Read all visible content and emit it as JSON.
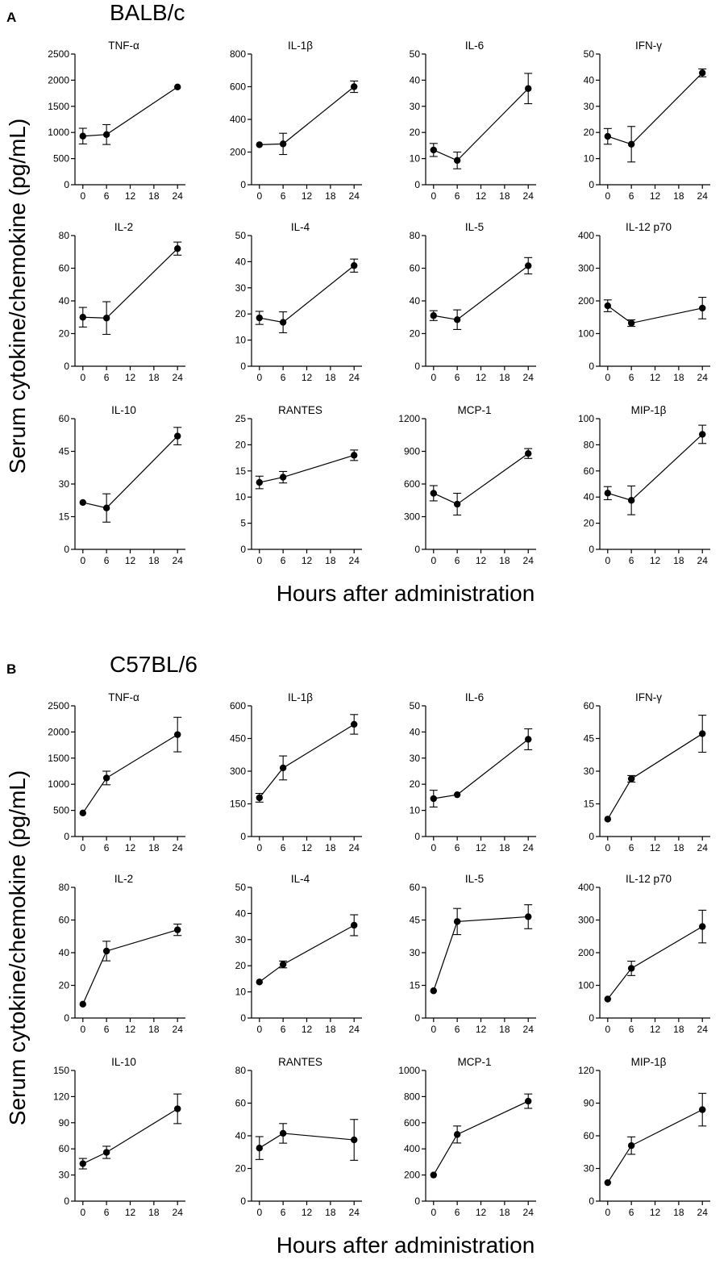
{
  "x_label": "Hours after administration",
  "y_label": "Serum cytokine/chemokine (pg/mL)",
  "chart_data": [
    {
      "panel": "A",
      "strain": "BALB/c",
      "type": "line",
      "x_ticks": [
        0,
        6,
        12,
        18,
        24
      ],
      "xlim": [
        -2,
        26
      ],
      "subplots": [
        {
          "title": "TNF-α",
          "x": [
            0,
            6,
            24
          ],
          "y": [
            930,
            960,
            1870
          ],
          "err": [
            150,
            190,
            0
          ],
          "yticks": [
            0,
            500,
            1000,
            1500,
            2000,
            2500
          ],
          "ylim": [
            0,
            2500
          ]
        },
        {
          "title": "IL-1β",
          "x": [
            0,
            6,
            24
          ],
          "y": [
            245,
            250,
            600
          ],
          "err": [
            0,
            65,
            35
          ],
          "yticks": [
            0,
            200,
            400,
            600,
            800
          ],
          "ylim": [
            0,
            800
          ]
        },
        {
          "title": "IL-6",
          "x": [
            0,
            6,
            24
          ],
          "y": [
            13.3,
            9.3,
            36.8
          ],
          "err": [
            2.5,
            3.2,
            5.8
          ],
          "yticks": [
            0,
            10,
            20,
            30,
            40,
            50
          ],
          "ylim": [
            0,
            50
          ]
        },
        {
          "title": "IFN-γ",
          "x": [
            0,
            6,
            24
          ],
          "y": [
            18.5,
            15.5,
            42.8
          ],
          "err": [
            3,
            6.8,
            1.5
          ],
          "yticks": [
            0,
            10,
            20,
            30,
            40,
            50
          ],
          "ylim": [
            0,
            50
          ]
        },
        {
          "title": "IL-2",
          "x": [
            0,
            6,
            24
          ],
          "y": [
            30,
            29.5,
            72
          ],
          "err": [
            6,
            10,
            4
          ],
          "yticks": [
            0,
            20,
            40,
            60,
            80
          ],
          "ylim": [
            0,
            80
          ]
        },
        {
          "title": "IL-4",
          "x": [
            0,
            6,
            24
          ],
          "y": [
            18.5,
            16.8,
            38.5
          ],
          "err": [
            2.5,
            4,
            2.5
          ],
          "yticks": [
            0,
            10,
            20,
            30,
            40,
            50
          ],
          "ylim": [
            0,
            50
          ]
        },
        {
          "title": "IL-5",
          "x": [
            0,
            6,
            24
          ],
          "y": [
            31,
            28.5,
            61.5
          ],
          "err": [
            3,
            6,
            5
          ],
          "yticks": [
            0,
            20,
            40,
            60,
            80
          ],
          "ylim": [
            0,
            80
          ]
        },
        {
          "title": "IL-12 p70",
          "x": [
            0,
            6,
            24
          ],
          "y": [
            185,
            132,
            178
          ],
          "err": [
            18,
            10,
            33
          ],
          "yticks": [
            0,
            100,
            200,
            300,
            400
          ],
          "ylim": [
            0,
            400
          ]
        },
        {
          "title": "IL-10",
          "x": [
            0,
            6,
            24
          ],
          "y": [
            21.5,
            19,
            52
          ],
          "err": [
            0,
            6.5,
            4
          ],
          "yticks": [
            0,
            15,
            30,
            45,
            60
          ],
          "ylim": [
            0,
            60
          ]
        },
        {
          "title": "RANTES",
          "x": [
            0,
            6,
            24
          ],
          "y": [
            12.8,
            13.8,
            18
          ],
          "err": [
            1.2,
            1.1,
            1
          ],
          "yticks": [
            0,
            5,
            10,
            15,
            20,
            25
          ],
          "ylim": [
            0,
            25
          ]
        },
        {
          "title": "MCP-1",
          "x": [
            0,
            6,
            24
          ],
          "y": [
            515,
            415,
            880
          ],
          "err": [
            70,
            100,
            45
          ],
          "yticks": [
            0,
            300,
            600,
            900,
            1200
          ],
          "ylim": [
            0,
            1200
          ]
        },
        {
          "title": "MIP-1β",
          "x": [
            0,
            6,
            24
          ],
          "y": [
            43,
            37.5,
            88
          ],
          "err": [
            5,
            11,
            7
          ],
          "yticks": [
            0,
            20,
            40,
            60,
            80,
            100
          ],
          "ylim": [
            0,
            100
          ]
        }
      ]
    },
    {
      "panel": "B",
      "strain": "C57BL/6",
      "type": "line",
      "x_ticks": [
        0,
        6,
        12,
        18,
        24
      ],
      "xlim": [
        -2,
        26
      ],
      "subplots": [
        {
          "title": "TNF-α",
          "x": [
            0,
            6,
            24
          ],
          "y": [
            450,
            1120,
            1950
          ],
          "err": [
            0,
            130,
            330
          ],
          "yticks": [
            0,
            500,
            1000,
            1500,
            2000,
            2500
          ],
          "ylim": [
            0,
            2500
          ]
        },
        {
          "title": "IL-1β",
          "x": [
            0,
            6,
            24
          ],
          "y": [
            178,
            315,
            515
          ],
          "err": [
            20,
            55,
            45
          ],
          "yticks": [
            0,
            150,
            300,
            450,
            600
          ],
          "ylim": [
            0,
            600
          ]
        },
        {
          "title": "IL-6",
          "x": [
            0,
            6,
            24
          ],
          "y": [
            14.5,
            16,
            37.2
          ],
          "err": [
            3.2,
            0,
            4
          ],
          "yticks": [
            0,
            10,
            20,
            30,
            40,
            50
          ],
          "ylim": [
            0,
            50
          ]
        },
        {
          "title": "IFN-γ",
          "x": [
            0,
            6,
            24
          ],
          "y": [
            8,
            26.5,
            47.2
          ],
          "err": [
            0,
            1.5,
            8.5
          ],
          "yticks": [
            0,
            15,
            30,
            45,
            60
          ],
          "ylim": [
            0,
            60
          ]
        },
        {
          "title": "IL-2",
          "x": [
            0,
            6,
            24
          ],
          "y": [
            8.5,
            41,
            54
          ],
          "err": [
            0,
            6,
            3.5
          ],
          "yticks": [
            0,
            20,
            40,
            60,
            80
          ],
          "ylim": [
            0,
            80
          ]
        },
        {
          "title": "IL-4",
          "x": [
            0,
            6,
            24
          ],
          "y": [
            13.8,
            20.5,
            35.5
          ],
          "err": [
            0,
            1.3,
            4
          ],
          "yticks": [
            0,
            10,
            20,
            30,
            40,
            50
          ],
          "ylim": [
            0,
            50
          ]
        },
        {
          "title": "IL-5",
          "x": [
            0,
            6,
            24
          ],
          "y": [
            12.5,
            44.3,
            46.5
          ],
          "err": [
            0,
            6,
            5.5
          ],
          "yticks": [
            0,
            15,
            30,
            45,
            60
          ],
          "ylim": [
            0,
            60
          ]
        },
        {
          "title": "IL-12 p70",
          "x": [
            0,
            6,
            24
          ],
          "y": [
            58,
            152,
            280
          ],
          "err": [
            0,
            22,
            50
          ],
          "yticks": [
            0,
            100,
            200,
            300,
            400
          ],
          "ylim": [
            0,
            400
          ]
        },
        {
          "title": "IL-10",
          "x": [
            0,
            6,
            24
          ],
          "y": [
            43,
            56,
            106
          ],
          "err": [
            6,
            7,
            17
          ],
          "yticks": [
            0,
            30,
            60,
            90,
            120,
            150
          ],
          "ylim": [
            0,
            150
          ]
        },
        {
          "title": "RANTES",
          "x": [
            0,
            6,
            24
          ],
          "y": [
            32.5,
            41.5,
            37.5
          ],
          "err": [
            7,
            6,
            12.5
          ],
          "yticks": [
            0,
            20,
            40,
            60,
            80
          ],
          "ylim": [
            0,
            80
          ]
        },
        {
          "title": "MCP-1",
          "x": [
            0,
            6,
            24
          ],
          "y": [
            200,
            510,
            765
          ],
          "err": [
            0,
            65,
            55
          ],
          "yticks": [
            0,
            200,
            400,
            600,
            800,
            1000
          ],
          "ylim": [
            0,
            1000
          ]
        },
        {
          "title": "MIP-1β",
          "x": [
            0,
            6,
            24
          ],
          "y": [
            17,
            51,
            84
          ],
          "err": [
            0,
            8,
            15
          ],
          "yticks": [
            0,
            30,
            60,
            90,
            120
          ],
          "ylim": [
            0,
            120
          ]
        }
      ]
    }
  ]
}
